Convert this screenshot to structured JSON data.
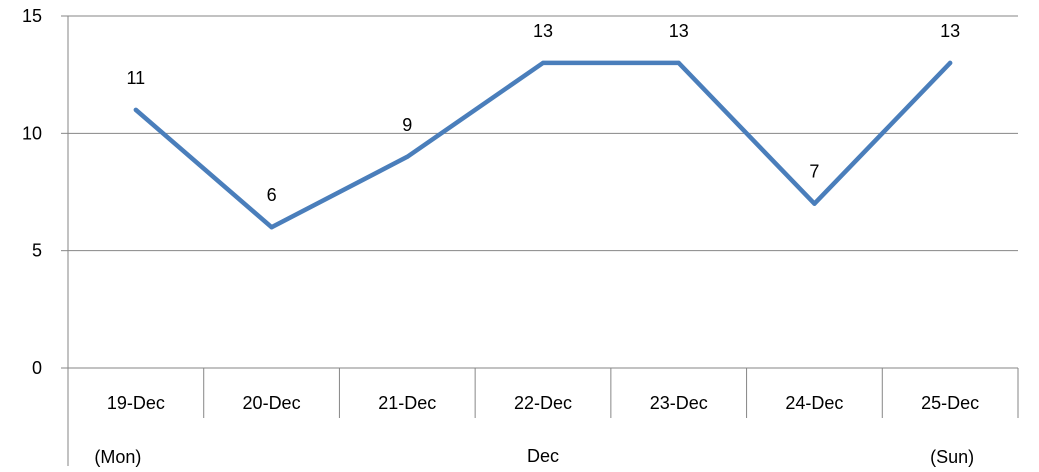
{
  "chart_data": {
    "type": "line",
    "categories": [
      "19-Dec",
      "20-Dec",
      "21-Dec",
      "22-Dec",
      "23-Dec",
      "24-Dec",
      "25-Dec"
    ],
    "series": [
      {
        "values": [
          11,
          6,
          9,
          13,
          13,
          7,
          13
        ]
      }
    ],
    "data_labels": [
      "11",
      "6",
      "9",
      "13",
      "13",
      "7",
      "13"
    ],
    "y_ticks": [
      0,
      5,
      10,
      15
    ],
    "y_tick_labels": [
      "0",
      "5",
      "10",
      "15"
    ],
    "ylim": [
      0,
      15
    ],
    "grid": true,
    "legend": "none",
    "secondary_x_labels": {
      "left": "(Mon)",
      "center": "Dec",
      "right": "(Sun)"
    },
    "colors": {
      "line": "#4a7ebb",
      "grid": "#868686",
      "axis": "#868686"
    }
  }
}
